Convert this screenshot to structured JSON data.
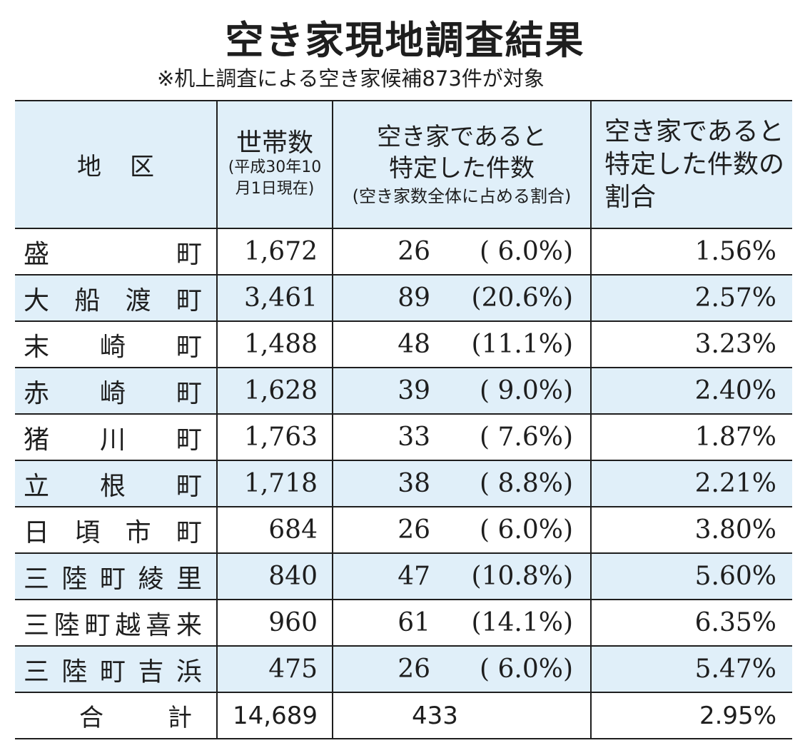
{
  "title": "空き家現地調査結果",
  "subtitle": "※机上調査による空き家候補873件が対象",
  "headers": {
    "area": "地区",
    "households_main": "世帯数",
    "households_sub1": "(平成30年10",
    "households_sub2": "月1日現在)",
    "count_line1": "空き家であると",
    "count_line2": "特定した件数",
    "count_sub": "(空き家数全体に占める割合)",
    "ratio": "空き家であると特定した件数の割合"
  },
  "rows": [
    {
      "area": "盛町",
      "households": "1,672",
      "count": "26",
      "share": "( 6.0%)",
      "ratio": "1.56%"
    },
    {
      "area": "大船渡町",
      "households": "3,461",
      "count": "89",
      "share": "(20.6%)",
      "ratio": "2.57%"
    },
    {
      "area": "末崎町",
      "households": "1,488",
      "count": "48",
      "share": "(11.1%)",
      "ratio": "3.23%"
    },
    {
      "area": "赤崎町",
      "households": "1,628",
      "count": "39",
      "share": "( 9.0%)",
      "ratio": "2.40%"
    },
    {
      "area": "猪川町",
      "households": "1,763",
      "count": "33",
      "share": "( 7.6%)",
      "ratio": "1.87%"
    },
    {
      "area": "立根町",
      "households": "1,718",
      "count": "38",
      "share": "( 8.8%)",
      "ratio": "2.21%"
    },
    {
      "area": "日頃市町",
      "households": "684",
      "count": "26",
      "share": "( 6.0%)",
      "ratio": "3.80%"
    },
    {
      "area": "三陸町綾里",
      "households": "840",
      "count": "47",
      "share": "(10.8%)",
      "ratio": "5.60%"
    },
    {
      "area": "三陸町越喜来",
      "households": "960",
      "count": "61",
      "share": "(14.1%)",
      "ratio": "6.35%"
    },
    {
      "area": "三陸町吉浜",
      "households": "475",
      "count": "26",
      "share": "( 6.0%)",
      "ratio": "5.47%"
    }
  ],
  "total": {
    "area": "合計",
    "households": "14,689",
    "count": "433",
    "ratio": "2.95%"
  }
}
